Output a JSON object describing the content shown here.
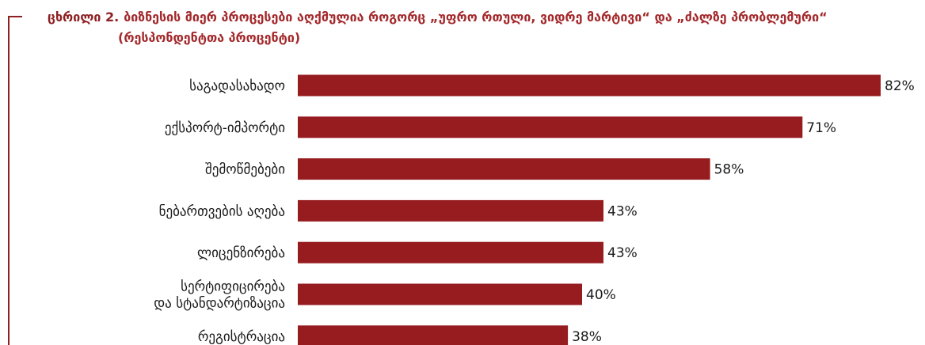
{
  "figure": {
    "label": "ცხრილი 2.",
    "title_line1": "ბიზნესის მიერ პროცესები აღქმულია როგორც „უფრო რთული, ვიდრე მარტივი“ და „ძალზე პრობლემური“",
    "title_line2": "(რესპონდენტთა პროცენტი)"
  },
  "chart_data": {
    "type": "bar",
    "orientation": "horizontal",
    "categories": [
      "საგადასახადო",
      "ექსპორტ-იმპორტი",
      "შემოწმებები",
      "ნებართვების აღება",
      "ლიცენზირება",
      "სერტიფიცირება და სტანდარტიზაცია",
      "რეგისტრაცია"
    ],
    "category_lines": [
      [
        "საგადასახადო"
      ],
      [
        "ექსპორტ-იმპორტი"
      ],
      [
        "შემოწმებები"
      ],
      [
        "ნებართვების აღება"
      ],
      [
        "ლიცენზირება"
      ],
      [
        "სერტიფიცირება",
        "და სტანდარტიზაცია"
      ],
      [
        "რეგისტრაცია"
      ]
    ],
    "values": [
      82,
      71,
      58,
      43,
      43,
      40,
      38
    ],
    "value_labels": [
      "82%",
      "71%",
      "58%",
      "43%",
      "43%",
      "40%",
      "38%"
    ],
    "unit": "%",
    "xlim": [
      0,
      82
    ],
    "grid": false,
    "legend": "none",
    "bar_color": "#961c1f"
  }
}
